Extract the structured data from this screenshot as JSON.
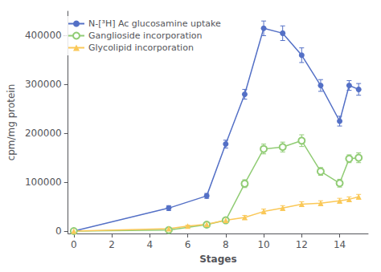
{
  "chart_data": {
    "type": "line",
    "xlabel": "Stages",
    "ylabel": "cpm/mg protein",
    "xlim": [
      -0.3,
      15.5
    ],
    "ylim": [
      -5000,
      450000
    ],
    "xticks": [
      0,
      2,
      4,
      6,
      8,
      10,
      12,
      14
    ],
    "yticks": [
      0,
      100000,
      200000,
      300000,
      400000
    ],
    "grid": false,
    "legend": "upper left",
    "series": [
      {
        "name": "N-[³H] Ac glucosamine uptake",
        "marker": "circle",
        "line_style": "solid",
        "x": [
          0,
          5,
          7,
          8,
          9,
          10,
          11,
          12,
          13,
          14,
          14.5,
          15
        ],
        "values": [
          0,
          47000,
          72000,
          178000,
          280000,
          415000,
          405000,
          360000,
          298000,
          225000,
          298000,
          290000
        ],
        "yerr": [
          3000,
          5000,
          5000,
          8000,
          10000,
          15000,
          15000,
          15000,
          12000,
          10000,
          10000,
          12000
        ]
      },
      {
        "name": "Ganglioside incorporation",
        "marker": "open circle",
        "line_style": "solid",
        "x": [
          0,
          5,
          7,
          8,
          9,
          10,
          11,
          12,
          13,
          14,
          14.5,
          15
        ],
        "values": [
          0,
          2000,
          13000,
          22000,
          97000,
          168000,
          172000,
          185000,
          122000,
          98000,
          148000,
          150000
        ],
        "yerr": [
          2000,
          2000,
          3000,
          4000,
          8000,
          10000,
          10000,
          12000,
          8000,
          8000,
          8000,
          10000
        ]
      },
      {
        "name": "Glycolipid incorporation",
        "marker": "triangle",
        "line_style": "solid",
        "x": [
          0,
          5,
          6,
          7,
          8,
          9,
          10,
          11,
          12,
          13,
          14,
          14.5,
          15
        ],
        "values": [
          0,
          5000,
          10000,
          14000,
          22000,
          28000,
          40000,
          47000,
          55000,
          57000,
          62000,
          65000,
          70000
        ],
        "yerr": [
          1000,
          2000,
          2000,
          3000,
          3000,
          4000,
          5000,
          5000,
          5000,
          5000,
          5000,
          5000,
          5000
        ]
      }
    ]
  }
}
